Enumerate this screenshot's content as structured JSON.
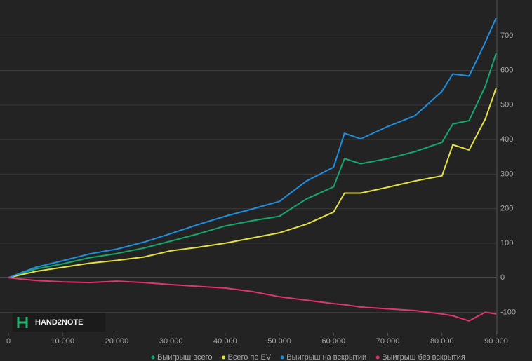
{
  "chart_data": {
    "type": "line",
    "x": [
      0,
      5000,
      10000,
      15000,
      20000,
      25000,
      30000,
      35000,
      40000,
      45000,
      50000,
      55000,
      60000,
      62000,
      65000,
      70000,
      75000,
      80000,
      82000,
      85000,
      88000,
      90000
    ],
    "series": [
      {
        "name": "Выигрыш всего",
        "color": "#14a86c",
        "values": [
          0,
          25,
          40,
          58,
          70,
          86,
          106,
          127,
          150,
          165,
          178,
          228,
          263,
          345,
          330,
          345,
          365,
          392,
          445,
          455,
          555,
          650
        ]
      },
      {
        "name": "Всего по EV",
        "color": "#e3e040",
        "values": [
          0,
          18,
          30,
          42,
          50,
          60,
          78,
          88,
          100,
          115,
          130,
          155,
          190,
          245,
          245,
          262,
          280,
          295,
          385,
          370,
          460,
          550
        ]
      },
      {
        "name": "Выигрыш на вскрытии",
        "color": "#1e8fe0",
        "values": [
          0,
          30,
          49,
          69,
          83,
          103,
          128,
          154,
          178,
          199,
          221,
          280,
          320,
          418,
          402,
          438,
          469,
          540,
          590,
          584,
          682,
          753
        ]
      },
      {
        "name": "Выигрыш без вскрытия",
        "color": "#e0356e",
        "values": [
          0,
          -8,
          -12,
          -14,
          -10,
          -14,
          -20,
          -25,
          -30,
          -40,
          -55,
          -65,
          -75,
          -78,
          -85,
          -90,
          -95,
          -105,
          -110,
          -125,
          -100,
          -105
        ]
      }
    ],
    "xlim": [
      0,
      90000
    ],
    "xticks": [
      0,
      {
        "value": 10000,
        "label": "10 000"
      },
      {
        "value": 20000,
        "label": "20 000"
      },
      {
        "value": 30000,
        "label": "30 000"
      },
      {
        "value": 40000,
        "label": "40 000"
      },
      {
        "value": 50000,
        "label": "50 000"
      },
      {
        "value": 60000,
        "label": "60 000"
      },
      {
        "value": 70000,
        "label": "70 000"
      },
      {
        "value": 80000,
        "label": "80 000"
      },
      {
        "value": 90000,
        "label": "90 000"
      }
    ],
    "ylim": [
      -160,
      800
    ],
    "yticks": [
      -100,
      0,
      100,
      200,
      300,
      400,
      500,
      600,
      700
    ],
    "grid": true,
    "logo": "HAND2NOTE"
  }
}
